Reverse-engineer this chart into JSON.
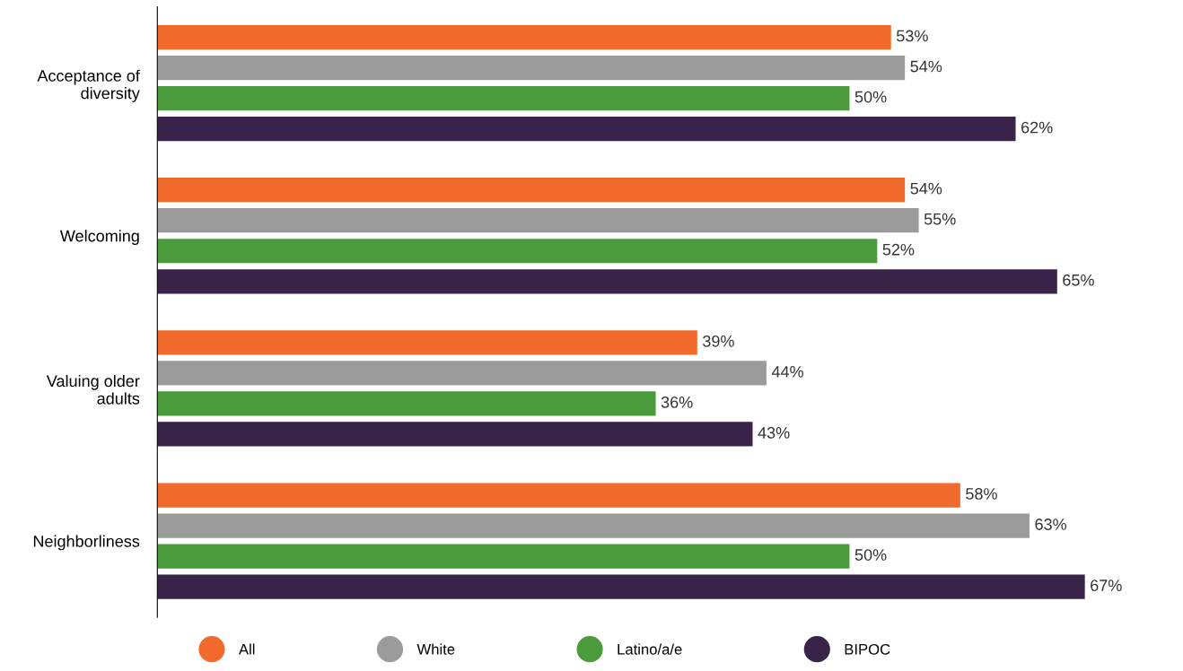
{
  "chart_data": {
    "type": "bar",
    "orientation": "horizontal",
    "categories": [
      "Acceptance of\ndiversity",
      "Welcoming",
      "Valuing older\nadults",
      "Neighborliness"
    ],
    "series": [
      {
        "name": "All",
        "color": "#f26a2b",
        "values": [
          53,
          54,
          39,
          58
        ],
        "value_labels": [
          "53%",
          "54%",
          "39%",
          "58%"
        ]
      },
      {
        "name": "White",
        "color": "#9b9b9b",
        "values": [
          54,
          55,
          44,
          63
        ],
        "value_labels": [
          "54%",
          "55%",
          "44%",
          "63%"
        ]
      },
      {
        "name": "Latino/a/e",
        "color": "#4b9b3c",
        "values": [
          50,
          52,
          36,
          50
        ],
        "value_labels": [
          "50%",
          "52%",
          "36%",
          "50%"
        ]
      },
      {
        "name": "BIPOC",
        "color": "#3a2348",
        "values": [
          62,
          65,
          43,
          67
        ],
        "value_labels": [
          "62%",
          "65%",
          "43%",
          "67%"
        ]
      }
    ],
    "legend": "bottom",
    "grid": false,
    "tick_labels": "y"
  }
}
